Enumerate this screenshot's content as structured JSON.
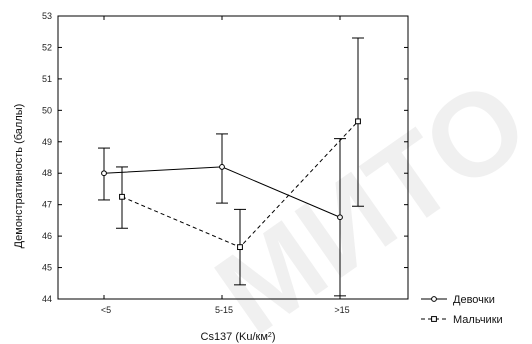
{
  "chart_data": {
    "type": "line",
    "x_categories": [
      "<5",
      "5-15",
      ">15"
    ],
    "ylabel": "Демонстративность (баллы)",
    "xlabel": "Cs137 (Ku/км²)",
    "xlabel_main": "Cs137 (Ku/км",
    "xlabel_sup": "2",
    "xlabel_close": ")",
    "ylim": [
      44,
      53
    ],
    "y_ticks": [
      44,
      45,
      46,
      47,
      48,
      49,
      50,
      51,
      52,
      53
    ],
    "grid": false,
    "legend_placement": "bottom-right",
    "series": [
      {
        "name": "Девочки",
        "line_style": "solid",
        "marker": "circle",
        "means": [
          48.0,
          48.2,
          46.6
        ],
        "err_low": [
          47.15,
          47.05,
          44.1
        ],
        "err_high": [
          48.8,
          49.25,
          49.1
        ]
      },
      {
        "name": "Мальчики",
        "line_style": "dashed",
        "marker": "square",
        "means": [
          47.25,
          45.65,
          49.65
        ],
        "err_low": [
          46.25,
          44.45,
          46.95
        ],
        "err_high": [
          48.2,
          46.85,
          52.3
        ]
      }
    ]
  },
  "watermark": {
    "text": "МИТО"
  }
}
